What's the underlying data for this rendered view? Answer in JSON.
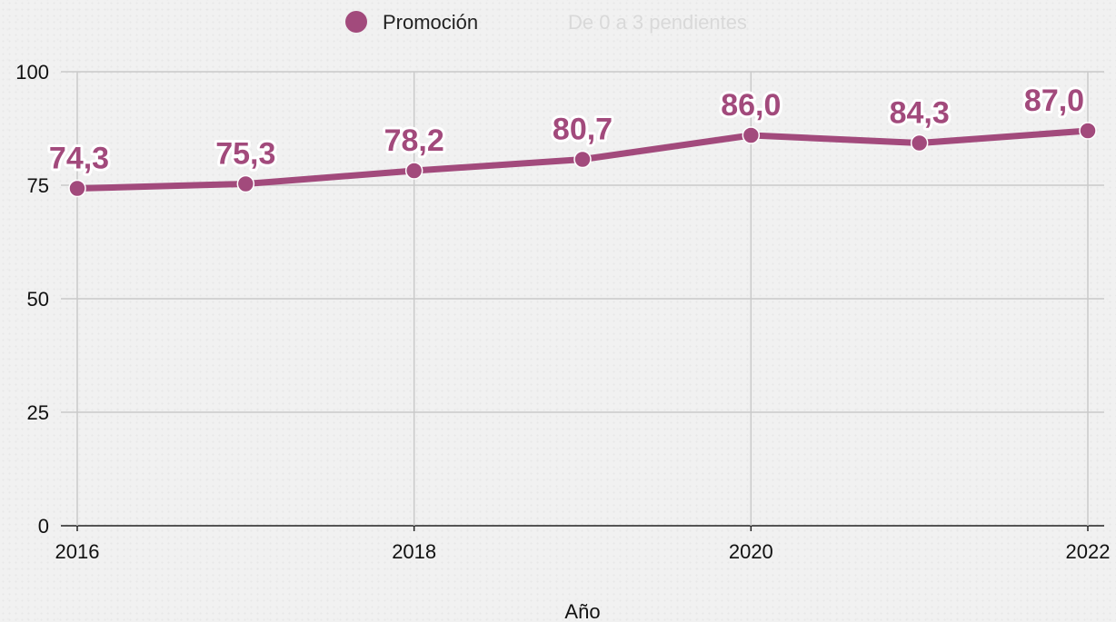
{
  "chart_data": {
    "type": "line",
    "x": [
      2016,
      2017,
      2018,
      2019,
      2020,
      2021,
      2022
    ],
    "series": [
      {
        "name": "Promoción",
        "values": [
          74.3,
          75.3,
          78.2,
          80.7,
          86.0,
          84.3,
          87.0
        ],
        "labels": [
          "74,3",
          "75,3",
          "78,2",
          "80,7",
          "86,0",
          "84,3",
          "87,0"
        ],
        "color": "#a24a7c"
      }
    ],
    "legend": {
      "position": "top",
      "items": [
        {
          "label": "Promoción",
          "color": "#a24a7c",
          "active": true
        },
        {
          "label": "De 0 a 3 pendientes",
          "color": "#d9d9d9",
          "active": false
        }
      ]
    },
    "xlabel": "Año",
    "ylabel": "",
    "xlim": [
      2016,
      2022
    ],
    "ylim": [
      0,
      100
    ],
    "x_ticks": [
      "2016",
      "2018",
      "2020",
      "2022"
    ],
    "y_ticks": [
      "0",
      "25",
      "50",
      "75",
      "100"
    ],
    "grid": true
  }
}
